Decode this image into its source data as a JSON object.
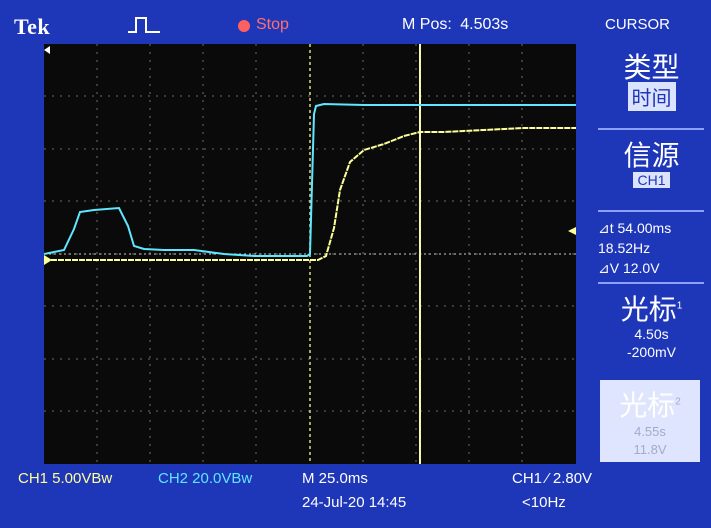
{
  "header": {
    "brand": "Tek",
    "trigger_icon": "pulse-icon",
    "status": "Stop",
    "m_pos_label": "M Pos:",
    "m_pos_value": "4.503s",
    "menu": "CURSOR"
  },
  "side_menu": {
    "type_title": "类型",
    "type_value": "时间",
    "source_title": "信源",
    "source_value": "CH1",
    "delta_t": "⊿t 54.00ms",
    "inv_delta_t": "18.52Hz",
    "delta_v": "⊿V 12.0V",
    "cursor1_title": "光标",
    "cursor1_index": "1",
    "cursor1_time": "4.50s",
    "cursor1_volt": "-200mV",
    "cursor2_title": "光标",
    "cursor2_index": "2",
    "cursor2_time": "4.55s",
    "cursor2_volt": "11.8V"
  },
  "footer": {
    "ch1": "CH1  5.00VBw",
    "ch2": "CH2  20.0VBw",
    "m_time": "M 25.0ms",
    "date": "24-Jul-20 14:45",
    "trigger": "CH1 ⁄ 2.80V",
    "rate": "<10Hz"
  },
  "colors": {
    "ch1": "#ffff9a",
    "ch2": "#5ee7ff",
    "bezel": "#1e36b8",
    "stop": "#ff6060"
  }
}
